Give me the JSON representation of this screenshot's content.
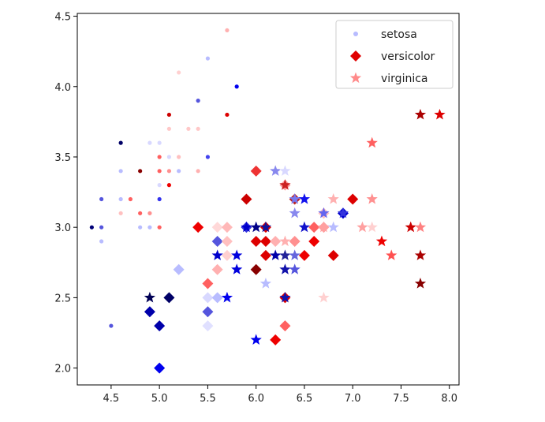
{
  "chart_data": {
    "type": "scatter",
    "title": "",
    "xlabel": "",
    "ylabel": "",
    "xlim": [
      4.15,
      8.1
    ],
    "ylim": [
      1.88,
      4.52
    ],
    "xticks": [
      "4.5",
      "5.0",
      "5.5",
      "6.0",
      "6.5",
      "7.0",
      "7.5",
      "8.0"
    ],
    "yticks": [
      "2.0",
      "2.5",
      "3.0",
      "3.5",
      "4.0",
      "4.5"
    ],
    "xtick_values": [
      4.5,
      5.0,
      5.5,
      6.0,
      6.5,
      7.0,
      7.5,
      8.0
    ],
    "ytick_values": [
      2.0,
      2.5,
      3.0,
      3.5,
      4.0,
      4.5
    ],
    "grid": false,
    "legend_position": "top-right",
    "legend": [
      {
        "label": "setosa",
        "marker": "circle",
        "color": "#b8bcff"
      },
      {
        "label": "versicolor",
        "marker": "diamond",
        "color": "#e00000"
      },
      {
        "label": "virginica",
        "marker": "star",
        "color": "#ff8a8a"
      }
    ],
    "series": [
      {
        "name": "setosa",
        "marker": "circle",
        "points": [
          {
            "x": 5.7,
            "y": 4.4,
            "c": "#ffb0b0"
          },
          {
            "x": 5.5,
            "y": 4.2,
            "c": "#b8bcff"
          },
          {
            "x": 5.2,
            "y": 4.1,
            "c": "#ffd0d0"
          },
          {
            "x": 5.8,
            "y": 4.0,
            "c": "#0000ee"
          },
          {
            "x": 5.4,
            "y": 3.9,
            "c": "#5555dd"
          },
          {
            "x": 5.1,
            "y": 3.8,
            "c": "#cc0000"
          },
          {
            "x": 5.7,
            "y": 3.8,
            "c": "#dd0000"
          },
          {
            "x": 5.1,
            "y": 3.7,
            "c": "#ffc8c8"
          },
          {
            "x": 5.3,
            "y": 3.7,
            "c": "#ffc8c8"
          },
          {
            "x": 5.4,
            "y": 3.7,
            "c": "#ffc8c8"
          },
          {
            "x": 4.6,
            "y": 3.6,
            "c": "#000066"
          },
          {
            "x": 4.9,
            "y": 3.6,
            "c": "#d8d8ff"
          },
          {
            "x": 5.0,
            "y": 3.6,
            "c": "#d8d8ff"
          },
          {
            "x": 5.0,
            "y": 3.5,
            "c": "#ff6060"
          },
          {
            "x": 5.1,
            "y": 3.5,
            "c": "#d8d8ff"
          },
          {
            "x": 5.2,
            "y": 3.5,
            "c": "#ffc0c0"
          },
          {
            "x": 5.5,
            "y": 3.5,
            "c": "#4444ee"
          },
          {
            "x": 4.6,
            "y": 3.4,
            "c": "#b8bcff"
          },
          {
            "x": 4.8,
            "y": 3.4,
            "c": "#880000"
          },
          {
            "x": 5.0,
            "y": 3.4,
            "c": "#ff6060"
          },
          {
            "x": 5.1,
            "y": 3.4,
            "c": "#ff9090"
          },
          {
            "x": 5.2,
            "y": 3.4,
            "c": "#b8bcff"
          },
          {
            "x": 5.4,
            "y": 3.4,
            "c": "#ffb0b0"
          },
          {
            "x": 5.0,
            "y": 3.3,
            "c": "#d8d8ff"
          },
          {
            "x": 5.1,
            "y": 3.3,
            "c": "#ee0000"
          },
          {
            "x": 4.4,
            "y": 3.2,
            "c": "#5555dd"
          },
          {
            "x": 4.6,
            "y": 3.2,
            "c": "#b8bcff"
          },
          {
            "x": 4.7,
            "y": 3.2,
            "c": "#ff6060"
          },
          {
            "x": 5.0,
            "y": 3.2,
            "c": "#3333ee"
          },
          {
            "x": 4.6,
            "y": 3.1,
            "c": "#ffc0c0"
          },
          {
            "x": 4.8,
            "y": 3.1,
            "c": "#ff6060"
          },
          {
            "x": 4.9,
            "y": 3.1,
            "c": "#ff9090"
          },
          {
            "x": 4.3,
            "y": 3.0,
            "c": "#000077"
          },
          {
            "x": 4.4,
            "y": 3.0,
            "c": "#5555dd"
          },
          {
            "x": 4.8,
            "y": 3.0,
            "c": "#b8bcff"
          },
          {
            "x": 4.9,
            "y": 3.0,
            "c": "#b8bcff"
          },
          {
            "x": 5.0,
            "y": 3.0,
            "c": "#ff6060"
          },
          {
            "x": 4.4,
            "y": 2.9,
            "c": "#b8bcff"
          },
          {
            "x": 4.5,
            "y": 2.3,
            "c": "#5555dd"
          }
        ]
      },
      {
        "name": "versicolor",
        "marker": "diamond",
        "points": [
          {
            "x": 6.0,
            "y": 3.4,
            "c": "#ee3333"
          },
          {
            "x": 6.3,
            "y": 3.3,
            "c": "#ffa0a0"
          },
          {
            "x": 5.9,
            "y": 3.2,
            "c": "#cc0000"
          },
          {
            "x": 6.4,
            "y": 3.2,
            "c": "#bb2222"
          },
          {
            "x": 7.0,
            "y": 3.2,
            "c": "#dd0000"
          },
          {
            "x": 6.7,
            "y": 3.1,
            "c": "#ffc0c0"
          },
          {
            "x": 6.9,
            "y": 3.1,
            "c": "#0000cc"
          },
          {
            "x": 5.4,
            "y": 3.0,
            "c": "#ee0000"
          },
          {
            "x": 5.6,
            "y": 3.0,
            "c": "#ffd8d8"
          },
          {
            "x": 5.7,
            "y": 3.0,
            "c": "#ffb8b8"
          },
          {
            "x": 5.9,
            "y": 3.0,
            "c": "#3333dd"
          },
          {
            "x": 6.1,
            "y": 3.0,
            "c": "#dd0000"
          },
          {
            "x": 6.6,
            "y": 3.0,
            "c": "#ff6060"
          },
          {
            "x": 6.7,
            "y": 3.0,
            "c": "#ffa0a0"
          },
          {
            "x": 5.6,
            "y": 2.9,
            "c": "#5555dd"
          },
          {
            "x": 5.7,
            "y": 2.9,
            "c": "#ffc0c0"
          },
          {
            "x": 6.0,
            "y": 2.9,
            "c": "#dd0000"
          },
          {
            "x": 6.1,
            "y": 2.9,
            "c": "#dd0000"
          },
          {
            "x": 6.2,
            "y": 2.9,
            "c": "#ffb0b0"
          },
          {
            "x": 6.4,
            "y": 2.9,
            "c": "#ff9090"
          },
          {
            "x": 6.6,
            "y": 2.9,
            "c": "#ee0000"
          },
          {
            "x": 5.7,
            "y": 2.8,
            "c": "#ffd0d0"
          },
          {
            "x": 6.1,
            "y": 2.8,
            "c": "#dd0000"
          },
          {
            "x": 6.5,
            "y": 2.8,
            "c": "#ee0000"
          },
          {
            "x": 6.8,
            "y": 2.8,
            "c": "#dd0000"
          },
          {
            "x": 5.2,
            "y": 2.7,
            "c": "#b8bcff"
          },
          {
            "x": 5.6,
            "y": 2.7,
            "c": "#ffb0b0"
          },
          {
            "x": 6.0,
            "y": 2.7,
            "c": "#880000"
          },
          {
            "x": 5.5,
            "y": 2.6,
            "c": "#ff6060"
          },
          {
            "x": 5.1,
            "y": 2.5,
            "c": "#000066"
          },
          {
            "x": 5.5,
            "y": 2.5,
            "c": "#d8d8ff"
          },
          {
            "x": 5.6,
            "y": 2.5,
            "c": "#b8bcff"
          },
          {
            "x": 6.3,
            "y": 2.5,
            "c": "#dd0000"
          },
          {
            "x": 4.9,
            "y": 2.4,
            "c": "#0000aa"
          },
          {
            "x": 5.5,
            "y": 2.4,
            "c": "#5555dd"
          },
          {
            "x": 5.0,
            "y": 2.3,
            "c": "#0000aa"
          },
          {
            "x": 5.5,
            "y": 2.3,
            "c": "#e0e0ff"
          },
          {
            "x": 6.3,
            "y": 2.3,
            "c": "#ff6060"
          },
          {
            "x": 6.2,
            "y": 2.2,
            "c": "#ee0000"
          },
          {
            "x": 5.0,
            "y": 2.0,
            "c": "#0000ee"
          }
        ]
      },
      {
        "name": "virginica",
        "marker": "star",
        "points": [
          {
            "x": 7.7,
            "y": 3.8,
            "c": "#aa0000"
          },
          {
            "x": 7.9,
            "y": 3.8,
            "c": "#dd0000"
          },
          {
            "x": 7.2,
            "y": 3.6,
            "c": "#ff6060"
          },
          {
            "x": 6.2,
            "y": 3.4,
            "c": "#8888ee"
          },
          {
            "x": 6.3,
            "y": 3.4,
            "c": "#d8d8ff"
          },
          {
            "x": 6.3,
            "y": 3.3,
            "c": "#cc2222"
          },
          {
            "x": 6.4,
            "y": 3.2,
            "c": "#7777ee"
          },
          {
            "x": 6.5,
            "y": 3.2,
            "c": "#1111ee"
          },
          {
            "x": 6.8,
            "y": 3.2,
            "c": "#ffb0b0"
          },
          {
            "x": 7.2,
            "y": 3.2,
            "c": "#ff9090"
          },
          {
            "x": 6.4,
            "y": 3.1,
            "c": "#8888ee"
          },
          {
            "x": 6.7,
            "y": 3.1,
            "c": "#6666ee"
          },
          {
            "x": 6.9,
            "y": 3.1,
            "c": "#3333dd"
          },
          {
            "x": 5.9,
            "y": 3.0,
            "c": "#0000cc"
          },
          {
            "x": 6.0,
            "y": 3.0,
            "c": "#000088"
          },
          {
            "x": 6.1,
            "y": 3.0,
            "c": "#111199"
          },
          {
            "x": 6.5,
            "y": 3.0,
            "c": "#1111cc"
          },
          {
            "x": 6.7,
            "y": 3.0,
            "c": "#ffa0a0"
          },
          {
            "x": 6.8,
            "y": 3.0,
            "c": "#b8bcff"
          },
          {
            "x": 7.1,
            "y": 3.0,
            "c": "#ffa0a0"
          },
          {
            "x": 7.2,
            "y": 3.0,
            "c": "#ffd0d0"
          },
          {
            "x": 7.6,
            "y": 3.0,
            "c": "#cc0000"
          },
          {
            "x": 7.7,
            "y": 3.0,
            "c": "#ff8080"
          },
          {
            "x": 6.3,
            "y": 2.9,
            "c": "#ffb0b0"
          },
          {
            "x": 7.3,
            "y": 2.9,
            "c": "#ee0000"
          },
          {
            "x": 5.6,
            "y": 2.8,
            "c": "#0000cc"
          },
          {
            "x": 5.8,
            "y": 2.8,
            "c": "#0000dd"
          },
          {
            "x": 6.2,
            "y": 2.8,
            "c": "#0000aa"
          },
          {
            "x": 6.3,
            "y": 2.8,
            "c": "#222299"
          },
          {
            "x": 6.4,
            "y": 2.8,
            "c": "#6666dd"
          },
          {
            "x": 7.4,
            "y": 2.8,
            "c": "#ff5050"
          },
          {
            "x": 7.7,
            "y": 2.8,
            "c": "#aa0000"
          },
          {
            "x": 5.8,
            "y": 2.7,
            "c": "#0000dd"
          },
          {
            "x": 6.3,
            "y": 2.7,
            "c": "#1111aa"
          },
          {
            "x": 6.4,
            "y": 2.7,
            "c": "#5555dd"
          },
          {
            "x": 7.7,
            "y": 2.6,
            "c": "#880000"
          },
          {
            "x": 6.1,
            "y": 2.6,
            "c": "#b8bcff"
          },
          {
            "x": 5.7,
            "y": 2.5,
            "c": "#0000ee"
          },
          {
            "x": 4.9,
            "y": 2.5,
            "c": "#000055"
          },
          {
            "x": 6.3,
            "y": 2.5,
            "c": "#1111aa"
          },
          {
            "x": 6.7,
            "y": 2.5,
            "c": "#ffd0d0"
          },
          {
            "x": 6.0,
            "y": 2.2,
            "c": "#0000ee"
          }
        ]
      }
    ]
  }
}
